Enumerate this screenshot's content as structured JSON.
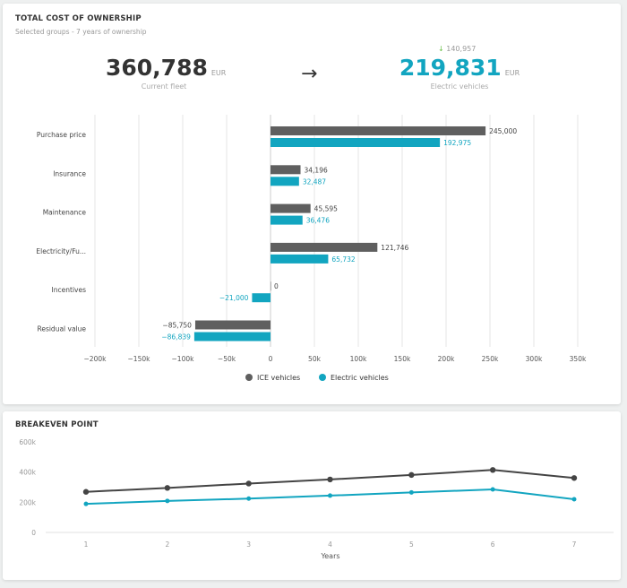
{
  "tco": {
    "title": "TOTAL COST OF OWNERSHIP",
    "subtitle": "Selected groups - 7 years of ownership",
    "current": {
      "value": "360,788",
      "unit": "EUR",
      "label": "Current fleet"
    },
    "arrow_icon": "arrow-right-icon",
    "ev": {
      "value": "219,831",
      "unit": "EUR",
      "label": "Electric vehicles",
      "savings": "140,957",
      "savings_icon": "arrow-down-icon"
    }
  },
  "breakeven": {
    "title": "BREAKEVEN POINT"
  },
  "colors": {
    "ice": "#5f5f5f",
    "ev": "#12a5c0",
    "savings": "#6cc04a"
  },
  "chart_data": [
    {
      "type": "bar",
      "orientation": "horizontal",
      "categories": [
        "Purchase price",
        "Insurance",
        "Maintenance",
        "Electricity/Fu...",
        "Incentives",
        "Residual value"
      ],
      "series": [
        {
          "name": "ICE vehicles",
          "values": [
            245000,
            34196,
            45595,
            121746,
            0,
            -85750
          ],
          "labels": [
            "245,000",
            "34,196",
            "45,595",
            "121,746",
            "0",
            "−85,750"
          ]
        },
        {
          "name": "Electric vehicles",
          "values": [
            192975,
            32487,
            36476,
            65732,
            -21000,
            -86839
          ],
          "labels": [
            "192,975",
            "32,487",
            "36,476",
            "65,732",
            "−21,000",
            "−86,839"
          ]
        }
      ],
      "xlim": [
        -200000,
        350000
      ],
      "xticks": [
        "−200k",
        "−150k",
        "−100k",
        "−50k",
        "0",
        "50k",
        "100k",
        "150k",
        "200k",
        "250k",
        "300k",
        "350k"
      ],
      "grid": true,
      "legend": "bottom"
    },
    {
      "type": "line",
      "x": [
        1,
        2,
        3,
        4,
        5,
        6,
        7
      ],
      "xlabel": "Years",
      "series": [
        {
          "name": "ICE vehicles",
          "values": [
            269000,
            295000,
            324000,
            351000,
            381000,
            414000,
            360788
          ]
        },
        {
          "name": "Electric vehicles",
          "values": [
            189000,
            209000,
            224000,
            244000,
            265000,
            285000,
            219831
          ]
        }
      ],
      "ylim": [
        0,
        600000
      ],
      "yticks": [
        "0",
        "200k",
        "400k",
        "600k"
      ],
      "grid": false
    }
  ]
}
